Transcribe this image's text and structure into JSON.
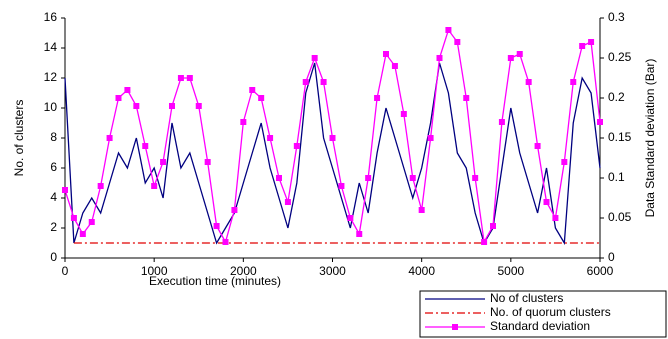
{
  "chart_data": {
    "type": "line",
    "x_label": "Execution time (minutes)",
    "y_label": "No. of clusters",
    "y2_label": "Data Standard deviation (Bar)",
    "x": [
      0,
      100,
      200,
      300,
      400,
      500,
      600,
      700,
      800,
      900,
      1000,
      1100,
      1200,
      1300,
      1400,
      1500,
      1600,
      1700,
      1800,
      1900,
      2000,
      2100,
      2200,
      2300,
      2400,
      2500,
      2600,
      2700,
      2800,
      2900,
      3000,
      3100,
      3200,
      3300,
      3400,
      3500,
      3600,
      3700,
      3800,
      3900,
      4000,
      4100,
      4200,
      4300,
      4400,
      4500,
      4600,
      4700,
      4800,
      4900,
      5000,
      5100,
      5200,
      5300,
      5400,
      5500,
      5600,
      5700,
      5800,
      5900,
      6000
    ],
    "series": [
      {
        "name": "No of clusters",
        "color": "#000080",
        "values": [
          12,
          1,
          3,
          4,
          3,
          5,
          7,
          6,
          8,
          5,
          6,
          4,
          9,
          6,
          7,
          5,
          3,
          1,
          2,
          3,
          5,
          7,
          9,
          6,
          4,
          2,
          5,
          11,
          13,
          8,
          6,
          4,
          2,
          5,
          3,
          7,
          10,
          8,
          6,
          4,
          6,
          9,
          13,
          11,
          7,
          6,
          3,
          1,
          2,
          6,
          10,
          7,
          5,
          3,
          6,
          2,
          1,
          9,
          12,
          11,
          6
        ]
      },
      {
        "name": "No. of quorum clusters",
        "color": "#e00000",
        "dash": "dashdot",
        "values": [
          null,
          1,
          1,
          1,
          1,
          1,
          1,
          1,
          1,
          1,
          1,
          1,
          1,
          1,
          1,
          1,
          1,
          1,
          1,
          1,
          1,
          1,
          1,
          1,
          1,
          1,
          1,
          1,
          1,
          1,
          1,
          1,
          1,
          1,
          1,
          1,
          1,
          1,
          1,
          1,
          1,
          1,
          1,
          1,
          1,
          1,
          1,
          1,
          1,
          1,
          1,
          1,
          1,
          1,
          1,
          1,
          1,
          1,
          1,
          1,
          1
        ]
      },
      {
        "name": "Standard deviation",
        "color": "#ff00ff",
        "axis": "y2",
        "marker": "square",
        "values": [
          0.085,
          0.05,
          0.03,
          0.045,
          0.09,
          0.15,
          0.2,
          0.21,
          0.19,
          0.14,
          0.09,
          0.12,
          0.19,
          0.225,
          0.225,
          0.19,
          0.12,
          0.04,
          0.02,
          0.06,
          0.17,
          0.21,
          0.2,
          0.15,
          0.1,
          0.07,
          0.14,
          0.22,
          0.25,
          0.22,
          0.15,
          0.09,
          0.05,
          0.03,
          0.1,
          0.2,
          0.255,
          0.24,
          0.18,
          0.1,
          0.06,
          0.15,
          0.25,
          0.285,
          0.27,
          0.2,
          0.1,
          0.02,
          0.04,
          0.17,
          0.25,
          0.255,
          0.22,
          0.14,
          0.07,
          0.05,
          0.12,
          0.22,
          0.265,
          0.27,
          0.17
        ]
      }
    ],
    "xlim": [
      0,
      6000
    ],
    "xticks": [
      0,
      1000,
      2000,
      3000,
      4000,
      5000,
      6000
    ],
    "ylim": [
      0,
      16
    ],
    "yticks": [
      0,
      2,
      4,
      6,
      8,
      10,
      12,
      14,
      16
    ],
    "y2lim": [
      0,
      0.3
    ],
    "y2ticks": [
      0,
      0.05,
      0.1,
      0.15,
      0.2,
      0.25,
      0.3
    ]
  }
}
